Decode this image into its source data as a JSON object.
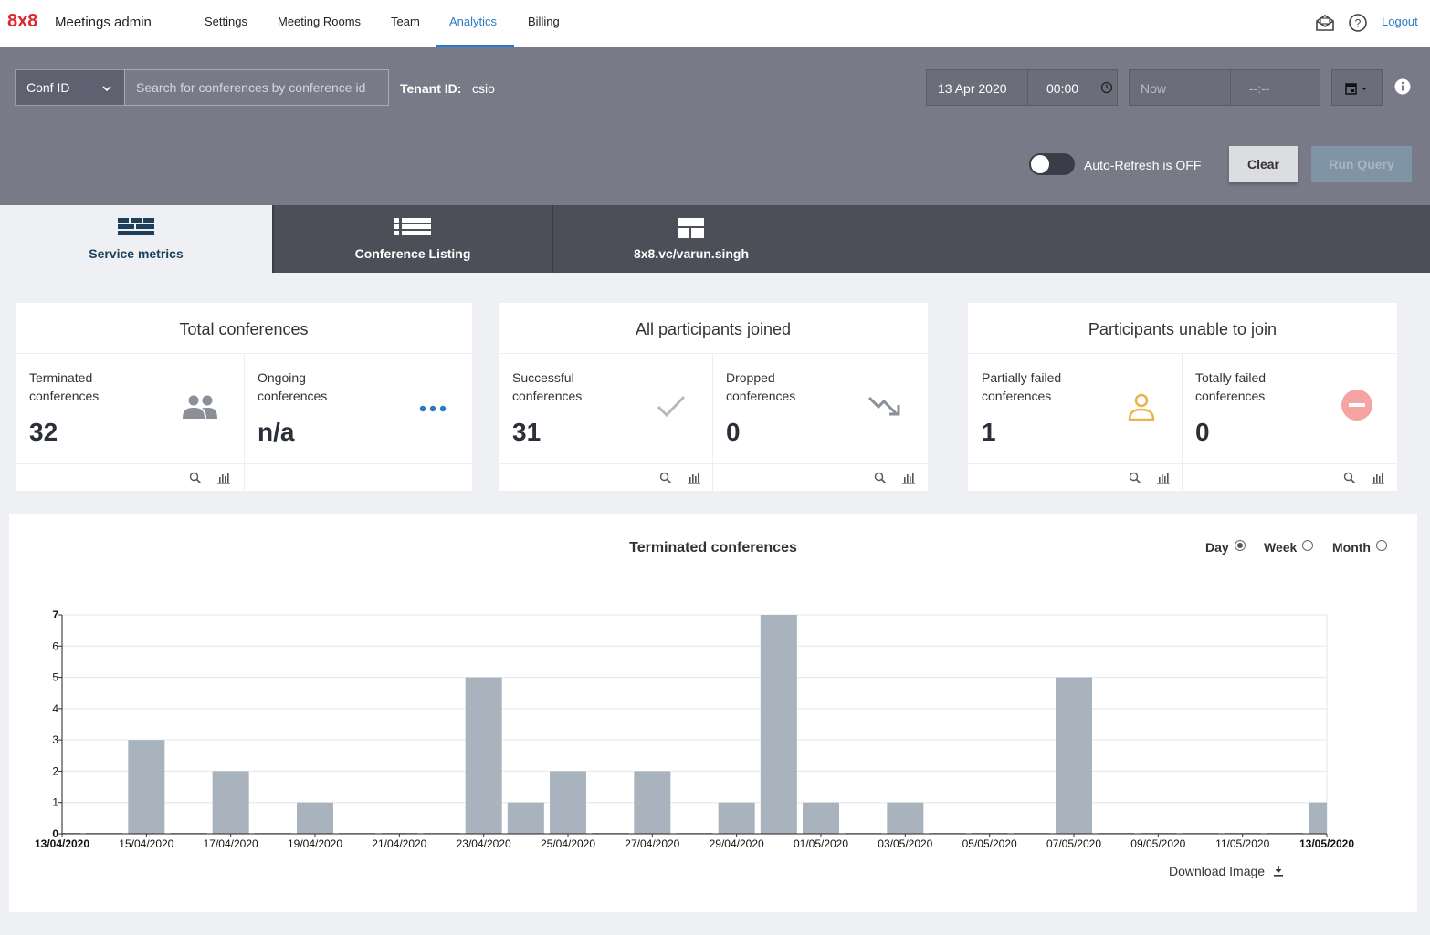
{
  "nav": {
    "logo": "8x8",
    "app_title": "Meetings admin",
    "links": [
      "Settings",
      "Meeting Rooms",
      "Team",
      "Analytics",
      "Billing"
    ],
    "active": "Analytics",
    "logout": "Logout"
  },
  "query": {
    "conf_select": "Conf ID",
    "search_placeholder": "Search for conferences by conference id",
    "tenant_label": "Tenant ID:",
    "tenant_value": "csio",
    "start_date": "13 Apr 2020",
    "start_time": "00:00",
    "end_date": "Now",
    "end_time": "--:--",
    "auto_refresh": "Auto-Refresh is OFF",
    "clear": "Clear",
    "run": "Run Query"
  },
  "tabs": [
    {
      "label": "Service metrics",
      "icon": "service-metrics-icon"
    },
    {
      "label": "Conference Listing",
      "icon": "list-icon"
    },
    {
      "label": "8x8.vc/varun.singh",
      "icon": "layout-icon"
    }
  ],
  "cards": [
    {
      "title": "Total conferences",
      "metrics": [
        {
          "label": "Terminated conferences",
          "value": "32",
          "icon": "people-icon"
        },
        {
          "label": "Ongoing conferences",
          "value": "n/a",
          "icon": "dots-icon"
        }
      ]
    },
    {
      "title": "All participants joined",
      "metrics": [
        {
          "label": "Successful conferences",
          "value": "31",
          "icon": "check-icon"
        },
        {
          "label": "Dropped conferences",
          "value": "0",
          "icon": "trend-down-icon"
        }
      ]
    },
    {
      "title": "Participants unable to join",
      "metrics": [
        {
          "label": "Partially failed conferences",
          "value": "1",
          "icon": "person-icon"
        },
        {
          "label": "Totally failed conferences",
          "value": "0",
          "icon": "minus-circle-icon"
        }
      ]
    }
  ],
  "chart_controls": {
    "options": [
      "Day",
      "Week",
      "Month"
    ],
    "selected": "Day",
    "download": "Download Image"
  },
  "colors": {
    "accent": "#2a7ac7",
    "brand": "#e0242b",
    "bar": "#a9b3be",
    "partial_icon": "#e8b44a",
    "failed_icon": "#f28b8b"
  },
  "chart_data": {
    "type": "bar",
    "title": "Terminated conferences",
    "categories": [
      "13/04/2020",
      "14/04/2020",
      "15/04/2020",
      "16/04/2020",
      "17/04/2020",
      "18/04/2020",
      "19/04/2020",
      "20/04/2020",
      "21/04/2020",
      "22/04/2020",
      "23/04/2020",
      "24/04/2020",
      "25/04/2020",
      "26/04/2020",
      "27/04/2020",
      "28/04/2020",
      "29/04/2020",
      "30/04/2020",
      "01/05/2020",
      "02/05/2020",
      "03/05/2020",
      "04/05/2020",
      "05/05/2020",
      "06/05/2020",
      "07/05/2020",
      "08/05/2020",
      "09/05/2020",
      "10/05/2020",
      "11/05/2020",
      "12/05/2020",
      "13/05/2020"
    ],
    "values": [
      0,
      0,
      3,
      0,
      2,
      0,
      1,
      0,
      0,
      0,
      5,
      1,
      2,
      0,
      2,
      0,
      1,
      7,
      1,
      0,
      1,
      0,
      0,
      0,
      5,
      0,
      0,
      0,
      0,
      0,
      1
    ],
    "tick_labels": [
      "13/04/2020",
      "15/04/2020",
      "17/04/2020",
      "19/04/2020",
      "21/04/2020",
      "23/04/2020",
      "25/04/2020",
      "27/04/2020",
      "29/04/2020",
      "01/05/2020",
      "03/05/2020",
      "05/05/2020",
      "07/05/2020",
      "09/05/2020",
      "11/05/2020",
      "13/05/2020"
    ],
    "y_ticks": [
      "0",
      "1",
      "2",
      "3",
      "4",
      "5",
      "6",
      "7"
    ],
    "ylim": [
      0,
      7
    ],
    "grid": true
  }
}
